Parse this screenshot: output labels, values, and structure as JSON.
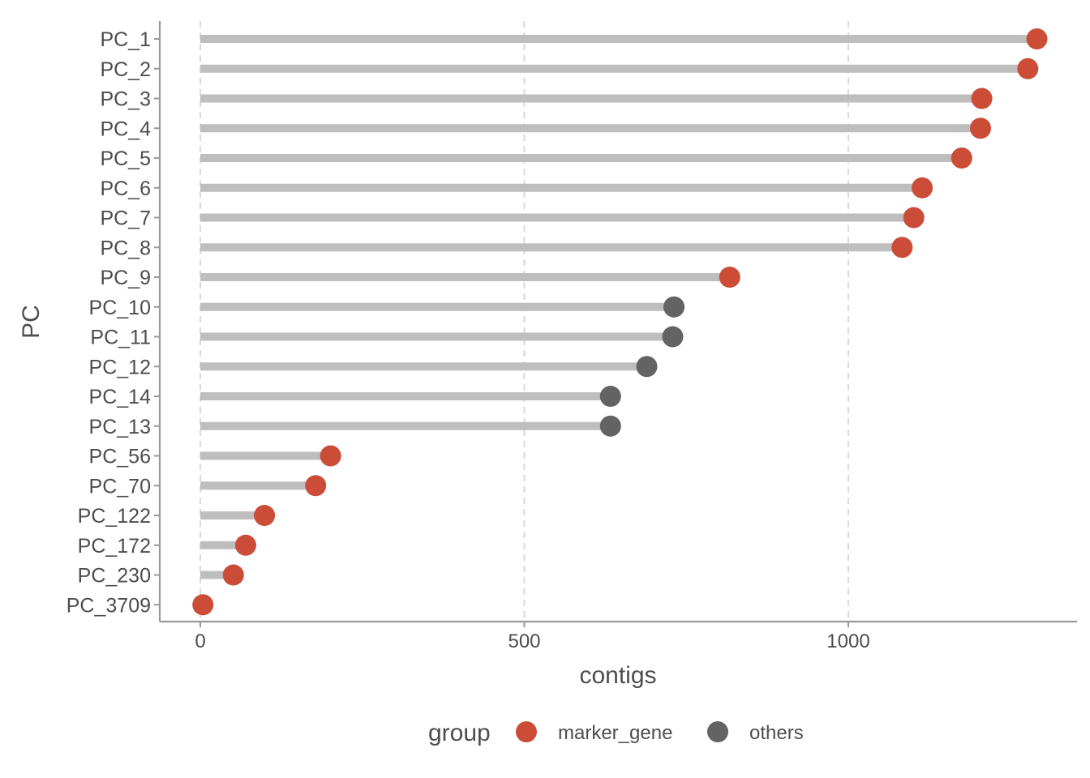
{
  "chart_data": {
    "type": "lollipop",
    "xlabel": "contigs",
    "ylabel": "PC",
    "xlim": [
      -62,
      1355
    ],
    "x_ticks": [
      0,
      500,
      1000
    ],
    "x_tick_labels": [
      "0",
      "500",
      "1000"
    ],
    "grid": "vertical dashed major gridlines",
    "legend": {
      "title": "group",
      "placement": "bottom",
      "entries": [
        {
          "key": "marker_gene",
          "label": "marker_gene",
          "color": "#cb4c37"
        },
        {
          "key": "others",
          "label": "others",
          "color": "#636363"
        }
      ]
    },
    "categories": [
      "PC_1",
      "PC_2",
      "PC_3",
      "PC_4",
      "PC_5",
      "PC_6",
      "PC_7",
      "PC_8",
      "PC_9",
      "PC_10",
      "PC_11",
      "PC_12",
      "PC_14",
      "PC_13",
      "PC_56",
      "PC_70",
      "PC_122",
      "PC_172",
      "PC_230",
      "PC_3709"
    ],
    "values": [
      1291,
      1277,
      1206,
      1204,
      1175,
      1114,
      1101,
      1083,
      817,
      731,
      729,
      689,
      633,
      633,
      201,
      178,
      99,
      70,
      51,
      4
    ],
    "groups": [
      "marker_gene",
      "marker_gene",
      "marker_gene",
      "marker_gene",
      "marker_gene",
      "marker_gene",
      "marker_gene",
      "marker_gene",
      "marker_gene",
      "others",
      "others",
      "others",
      "others",
      "others",
      "marker_gene",
      "marker_gene",
      "marker_gene",
      "marker_gene",
      "marker_gene",
      "marker_gene"
    ],
    "stem_color": "#bebebe"
  }
}
